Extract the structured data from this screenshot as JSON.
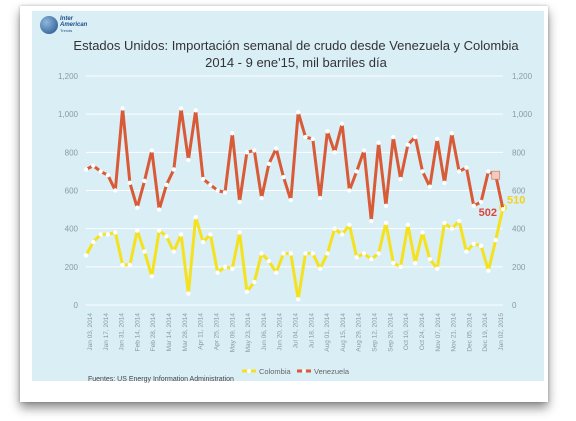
{
  "brand": {
    "line1": "Inter",
    "line2": "American",
    "line3": "Trends"
  },
  "chart_data": {
    "type": "line",
    "title": "Estados Unidos: Importación semanal de crudo desde Venezuela y Colombia",
    "subtitle": "2014 - 9 ene'15, mil barriles día",
    "ylim": [
      0,
      1200
    ],
    "y_ticks": [
      "0",
      "200",
      "400",
      "600",
      "800",
      "1,000",
      "1,200"
    ],
    "secondary_axis": "same as left",
    "grid": true,
    "legend": "bottom-center",
    "x_labels": [
      "Jan 03, 2014",
      "Jan 17, 2014",
      "Jan 31, 2014",
      "Feb 14, 2014",
      "Feb 28, 2014",
      "Mar 14, 2014",
      "Mar 28, 2014",
      "Apr 11, 2014",
      "Apr 25, 2014",
      "May 09, 2014",
      "May 23, 2014",
      "Jun 06, 2014",
      "Jun 20, 2014",
      "Jul 04, 2014",
      "Jul 18, 2014",
      "Aug 01, 2014",
      "Aug 15, 2014",
      "Aug 29, 2014",
      "Sep 12, 2014",
      "Sep 26, 2014",
      "Oct 10, 2014",
      "Oct 24, 2014",
      "Nov 07, 2014",
      "Nov 21, 2014",
      "Dec 05, 2014",
      "Dec 19, 2014",
      "Jan 02, 2015"
    ],
    "series": [
      {
        "name": "Colombia",
        "color": "#f5e21e",
        "values": [
          260,
          330,
          370,
          370,
          380,
          210,
          210,
          390,
          280,
          150,
          390,
          360,
          280,
          370,
          60,
          460,
          330,
          370,
          170,
          200,
          190,
          380,
          70,
          120,
          270,
          230,
          170,
          270,
          270,
          30,
          270,
          270,
          190,
          270,
          400,
          370,
          420,
          250,
          270,
          240,
          270,
          430,
          220,
          200,
          420,
          220,
          380,
          240,
          190,
          430,
          400,
          440,
          280,
          320,
          310,
          180,
          340,
          510
        ],
        "last_point": {
          "label": "510",
          "value": 510
        }
      },
      {
        "name": "Venezuela",
        "color": "#d95a36",
        "values": [
          710,
          730,
          700,
          680,
          600,
          1030,
          640,
          510,
          650,
          810,
          500,
          630,
          710,
          1030,
          760,
          1020,
          660,
          630,
          600,
          590,
          900,
          540,
          800,
          810,
          560,
          740,
          820,
          670,
          550,
          1010,
          880,
          870,
          560,
          910,
          800,
          950,
          600,
          700,
          810,
          440,
          850,
          520,
          880,
          660,
          840,
          880,
          700,
          620,
          870,
          640,
          900,
          700,
          720,
          520,
          540,
          700,
          680,
          502
        ],
        "last_point": {
          "label": "502",
          "value": 502
        }
      }
    ]
  },
  "source": "Fuentes: US Energy Information Administration",
  "colors": {
    "plot_bg": "#daeef6",
    "grid": "#ffffff",
    "axis_text": "#8a9aa3",
    "last_point_fill": "#f6c9bd"
  }
}
